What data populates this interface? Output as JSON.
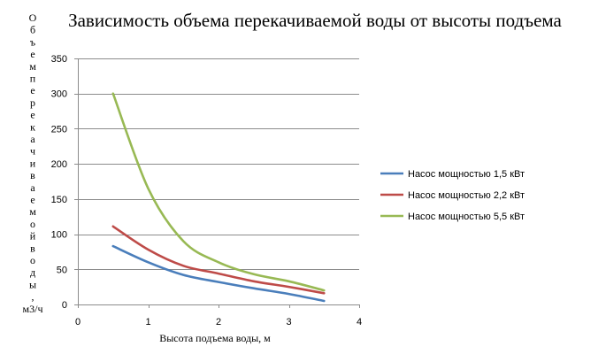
{
  "chart_data": {
    "type": "line",
    "title": "Зависимость объема перекачиваемой воды от высоты подъема",
    "xlabel": "Высота подъема воды, м",
    "ylabel": "Объем перекачиваемой воды, м3/ч",
    "xlim": [
      0,
      4
    ],
    "ylim": [
      0,
      350
    ],
    "xticks": [
      0,
      1,
      2,
      3,
      4
    ],
    "yticks": [
      0,
      50,
      100,
      150,
      200,
      250,
      300,
      350
    ],
    "grid": "horizontal",
    "legend": "right",
    "series": [
      {
        "name": "Насос мощностью 1,5 кВт",
        "color": "#4a7ebb",
        "x": [
          0.5,
          1.0,
          1.5,
          2.0,
          2.5,
          3.0,
          3.5
        ],
        "y": [
          83,
          60,
          42,
          32,
          23,
          15,
          5
        ]
      },
      {
        "name": "Насос мощностью 2,2 кВт",
        "color": "#be4b48",
        "x": [
          0.5,
          1.0,
          1.5,
          2.0,
          2.5,
          3.0,
          3.5
        ],
        "y": [
          111,
          78,
          55,
          44,
          33,
          25,
          16
        ]
      },
      {
        "name": "Насос мощностью 5,5 кВт",
        "color": "#98b954",
        "x": [
          0.5,
          1.0,
          1.5,
          2.0,
          2.5,
          3.0,
          3.5
        ],
        "y": [
          300,
          165,
          90,
          60,
          43,
          33,
          20
        ]
      }
    ]
  }
}
